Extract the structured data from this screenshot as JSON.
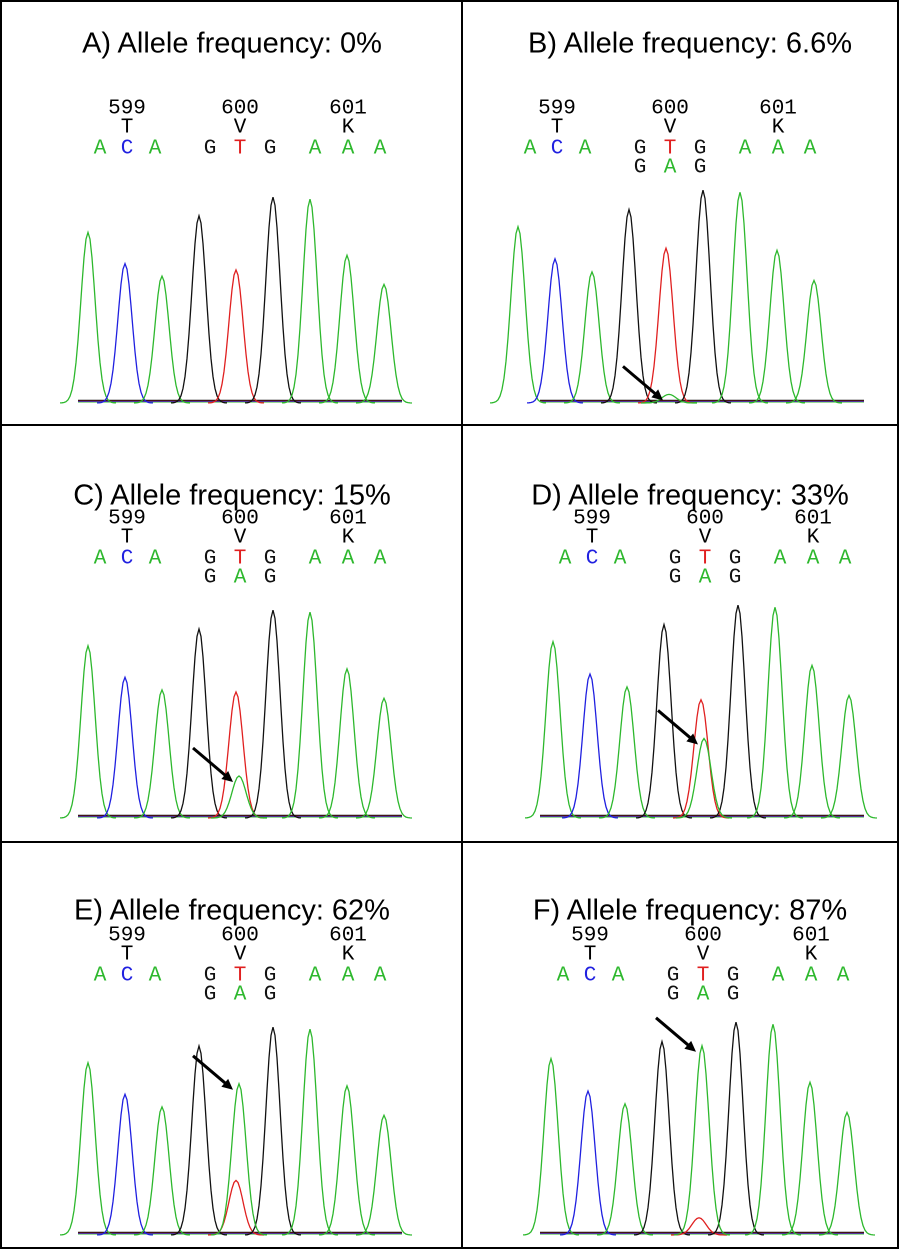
{
  "panels": [
    {
      "title": "A) Allele frequency: 0%",
      "codons": [
        {
          "number": 599,
          "amino_acid": "T"
        },
        {
          "number": 600,
          "amino_acid": "V"
        },
        {
          "number": 601,
          "amino_acid": "K"
        }
      ],
      "bases": [
        "A",
        "C",
        "A",
        "G",
        "T",
        "G",
        "A",
        "A",
        "A"
      ]
    },
    {
      "title": "B) Allele frequency: 6.6%",
      "codons": [
        {
          "number": 599,
          "amino_acid": "T"
        },
        {
          "number": 600,
          "amino_acid": "V"
        },
        {
          "number": 601,
          "amino_acid": "K"
        }
      ],
      "bases": [
        "A",
        "C",
        "A",
        "G",
        "T",
        "G",
        "A",
        "A",
        "A"
      ],
      "mutant_bases": [
        "G",
        "A",
        "G"
      ]
    },
    {
      "title": "C) Allele frequency: 15%",
      "codons": [
        {
          "number": 599,
          "amino_acid": "T"
        },
        {
          "number": 600,
          "amino_acid": "V"
        },
        {
          "number": 601,
          "amino_acid": "K"
        }
      ],
      "bases": [
        "A",
        "C",
        "A",
        "G",
        "T",
        "G",
        "A",
        "A",
        "A"
      ],
      "mutant_bases": [
        "G",
        "A",
        "G"
      ]
    },
    {
      "title": "D) Allele frequency: 33%",
      "codons": [
        {
          "number": 599,
          "amino_acid": "T"
        },
        {
          "number": 600,
          "amino_acid": "V"
        },
        {
          "number": 601,
          "amino_acid": "K"
        }
      ],
      "bases": [
        "A",
        "C",
        "A",
        "G",
        "T",
        "G",
        "A",
        "A",
        "A"
      ],
      "mutant_bases": [
        "G",
        "A",
        "G"
      ]
    },
    {
      "title": "E) Allele frequency: 62%",
      "codons": [
        {
          "number": 599,
          "amino_acid": "T"
        },
        {
          "number": 600,
          "amino_acid": "V"
        },
        {
          "number": 601,
          "amino_acid": "K"
        }
      ],
      "bases": [
        "A",
        "C",
        "A",
        "G",
        "T",
        "G",
        "A",
        "A",
        "A"
      ],
      "mutant_bases": [
        "G",
        "A",
        "G"
      ]
    },
    {
      "title": "F) Allele frequency: 87%",
      "codons": [
        {
          "number": 599,
          "amino_acid": "T"
        },
        {
          "number": 600,
          "amino_acid": "V"
        },
        {
          "number": 601,
          "amino_acid": "K"
        }
      ],
      "bases": [
        "A",
        "C",
        "A",
        "G",
        "T",
        "G",
        "A",
        "A",
        "A"
      ],
      "mutant_bases": [
        "G",
        "A",
        "G"
      ]
    }
  ]
}
